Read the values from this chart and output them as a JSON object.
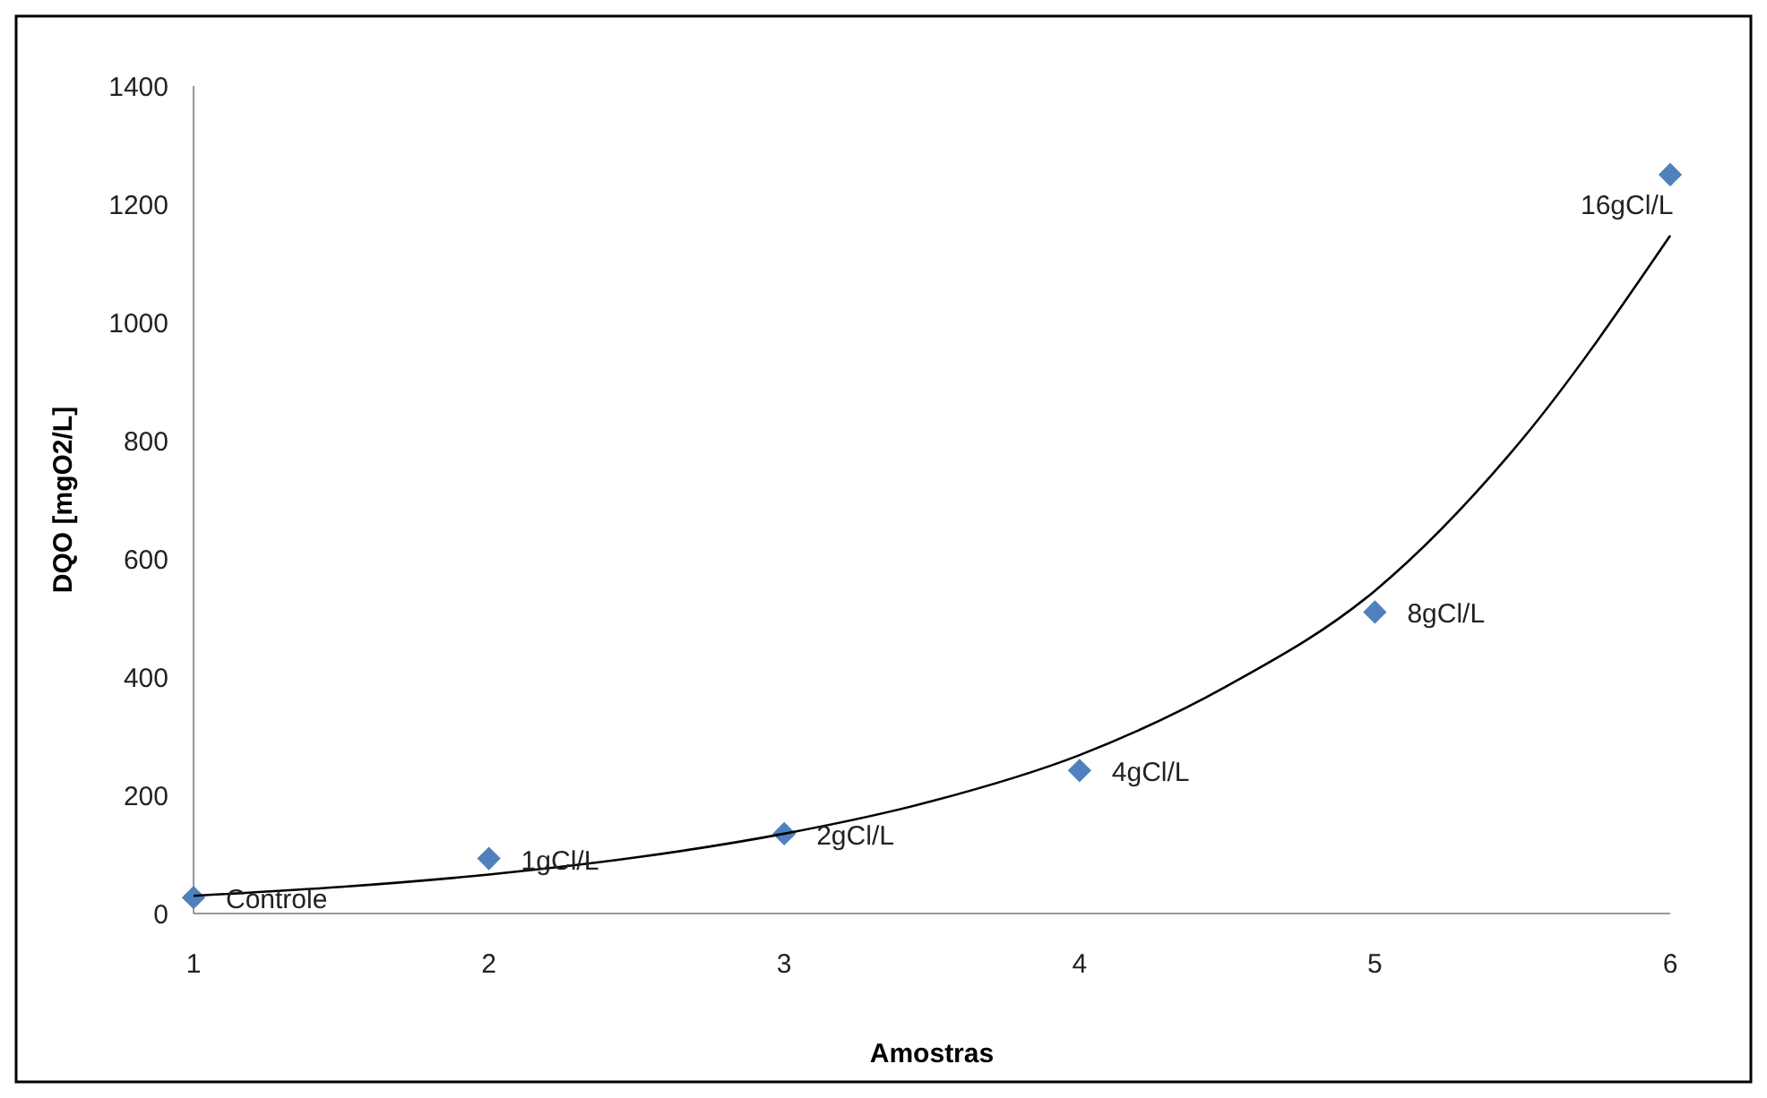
{
  "chart_data": {
    "type": "scatter",
    "xlabel": "Amostras",
    "ylabel": "DQO [mgO2/L]",
    "xlim": [
      1,
      6
    ],
    "xticks": [
      1,
      2,
      3,
      4,
      5,
      6
    ],
    "ylim": [
      0,
      1400
    ],
    "yticks": [
      0,
      200,
      400,
      600,
      800,
      1000,
      1200,
      1400
    ],
    "grid": false,
    "marker": "diamond",
    "series": [
      {
        "color": "#4f81bd",
        "x": [
          1,
          2,
          3,
          4,
          5,
          6
        ],
        "values": [
          27,
          93,
          135,
          242,
          510,
          1250
        ]
      },
      {
        "type": "line",
        "color": "#000000",
        "line_style": "solid",
        "marker": "none",
        "x": [
          1,
          1.5,
          2,
          2.5,
          3,
          3.5,
          4,
          4.5,
          5,
          5.5,
          6
        ],
        "values": [
          30,
          45,
          66,
          95,
          135,
          190,
          268,
          385,
          546,
          803,
          1147
        ]
      }
    ],
    "annotations": [
      {
        "text": "Controle",
        "x": 1,
        "y": 27
      },
      {
        "text": "1gCl/L",
        "x": 2,
        "y": 93
      },
      {
        "text": "2gCl/L",
        "x": 3,
        "y": 135
      },
      {
        "text": "4gCl/L",
        "x": 4,
        "y": 242
      },
      {
        "text": "8gCl/L",
        "x": 5,
        "y": 510
      },
      {
        "text": "16gCl/L",
        "x": 6,
        "y": 1250
      }
    ]
  }
}
